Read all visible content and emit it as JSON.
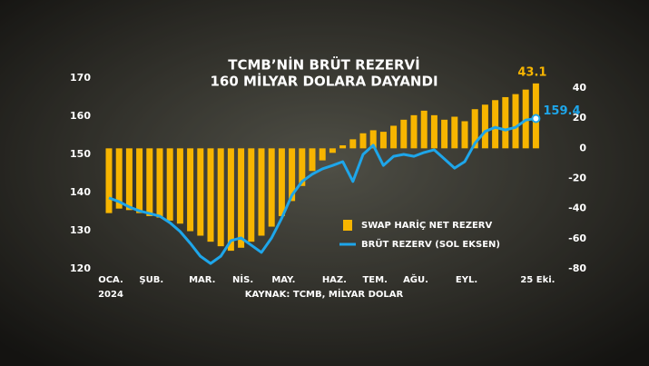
{
  "chart_data": {
    "type": "bar-line",
    "title": [
      "TCMB’NİN BRÜT REZERVİ",
      "160 MİLYAR DOLARA DAYANDI"
    ],
    "source": "KAYNAK: TCMB, MİLYAR DOLAR",
    "categories": [
      "OCA.",
      null,
      null,
      null,
      "ŞUB.",
      null,
      null,
      null,
      null,
      "MAR.",
      null,
      null,
      null,
      "NİS.",
      null,
      null,
      null,
      "MAY.",
      null,
      null,
      null,
      null,
      "HAZ.",
      null,
      null,
      null,
      "TEM.",
      null,
      null,
      null,
      "AĞU.",
      null,
      null,
      null,
      null,
      "EYL.",
      null,
      null,
      null,
      null,
      null,
      null,
      "25 Eki."
    ],
    "year_label": "2024",
    "series": [
      {
        "name": "SWAP HARİÇ NET REZERV",
        "type": "bar",
        "axis": "y2",
        "color": "#f7b500",
        "values": [
          -43,
          -40,
          -41,
          -43,
          -45,
          -46,
          -48,
          -50,
          -55,
          -58,
          -62,
          -65,
          -68,
          -66,
          -62,
          -58,
          -52,
          -45,
          -35,
          -25,
          -15,
          -8,
          -3,
          2,
          6,
          10,
          12,
          11,
          15,
          19,
          22,
          25,
          22,
          19,
          21,
          18,
          26,
          29,
          32,
          34,
          36,
          39,
          43.1
        ]
      },
      {
        "name": "BRÜT REZERV (SOL EKSEN)",
        "type": "line",
        "color": "#1ea6ea",
        "values": [
          138.6,
          137.6,
          136.2,
          135.2,
          134.5,
          133.8,
          132.1,
          129.8,
          126.7,
          123.3,
          121.4,
          123.3,
          127.4,
          128.1,
          126.2,
          124.3,
          128.1,
          133.3,
          139.3,
          142.9,
          144.8,
          146.2,
          147.1,
          148.1,
          142.9,
          150,
          152.4,
          147.1,
          149.5,
          150,
          149.5,
          150.5,
          151.2,
          148.8,
          146.4,
          148.1,
          152.9,
          156,
          157.1,
          156.4,
          157.1,
          159,
          159.4
        ]
      }
    ],
    "ylim": [
      120,
      170
    ],
    "yticks": [
      120,
      130,
      140,
      150,
      160,
      170
    ],
    "y2lim": [
      -80,
      40
    ],
    "y2ticks": [
      -80,
      -60,
      -40,
      -20,
      0,
      20,
      40
    ],
    "grid": false
  }
}
